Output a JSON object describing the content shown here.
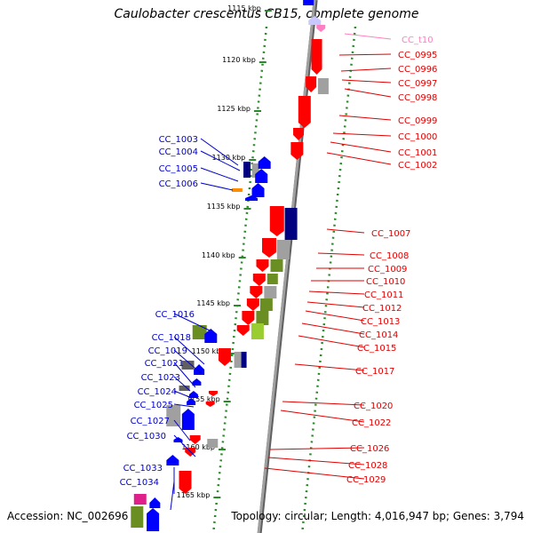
{
  "title": "Caulobacter crescentus CB15, complete genome",
  "accession": "Accession: NC_002696",
  "topology": "Topology: circular; Length: 4,016,947 bp; Genes: 3,794",
  "colors": {
    "plus_label": "#e00000",
    "minus_label": "#0000cc",
    "trna_label": "#ff80c0",
    "backbone": "#a0a0a0",
    "ruler_tick": "#2a8a2a"
  },
  "ruler": [
    "1115 kbp",
    "1120 kbp",
    "1125 kbp",
    "1130 kbp",
    "1135 kbp",
    "1140 kbp",
    "1145 kbp",
    "1150 kbp",
    "1155 kbp",
    "1160 kbp",
    "1165 kbp"
  ],
  "plus_labels": [
    "CC_t10",
    "CC_0995",
    "CC_0996",
    "CC_0997",
    "CC_0998",
    "CC_0999",
    "CC_1000",
    "CC_1001",
    "CC_1002",
    "CC_1007",
    "CC_1008",
    "CC_1009",
    "CC_1010",
    "CC_1011",
    "CC_1012",
    "CC_1013",
    "CC_1014",
    "CC_1015",
    "CC_1017",
    "CC_1020",
    "CC_1022",
    "CC_1026",
    "CC_1028",
    "CC_1029"
  ],
  "minus_labels": [
    "CC_1003",
    "CC_1004",
    "CC_1005",
    "CC_1006",
    "CC_1016",
    "CC_1018",
    "CC_1019",
    "CC_1021",
    "CC_1023",
    "CC_1024",
    "CC_1025",
    "CC_1027",
    "CC_1030",
    "CC_1033",
    "CC_1034"
  ]
}
